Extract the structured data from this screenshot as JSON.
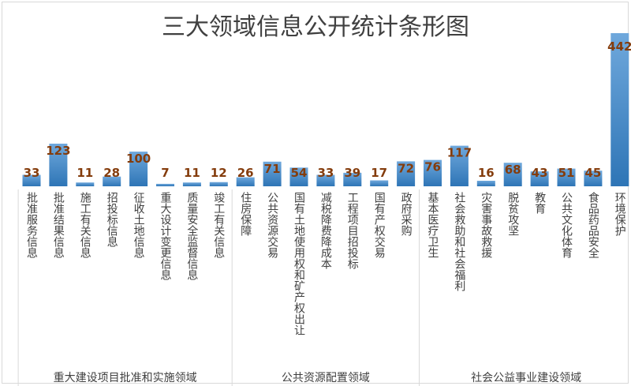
{
  "chart_data": {
    "type": "bar",
    "title": "三大领域信息公开统计条形图",
    "categories": [
      "批准服务信息",
      "批准结果信息",
      "施工有关信息",
      "招投标信息",
      "征收土地信息",
      "重大设计变更信息",
      "质量安全监督信息",
      "竣工有关信息",
      "住房保障",
      "公共资源交易",
      "国有土地使用权和矿产权出让",
      "减税降费降成本",
      "工程项目招投标",
      "国有产权交易",
      "政府采购",
      "基本医疗卫生",
      "社会救助和社会福利",
      "灾害事故救援",
      "脱贫攻坚",
      "教育",
      "公共文化体育",
      "食品药品安全",
      "环境保护"
    ],
    "values": [
      33,
      123,
      11,
      28,
      100,
      7,
      11,
      12,
      26,
      71,
      54,
      33,
      39,
      17,
      72,
      76,
      117,
      16,
      68,
      43,
      51,
      45,
      442
    ],
    "groups": [
      {
        "label": "重大建设项目批准和实施领域",
        "start": 0,
        "end": 7
      },
      {
        "label": "公共资源配置领域",
        "start": 8,
        "end": 14
      },
      {
        "label": "社会公益事业建设领域",
        "start": 15,
        "end": 22
      }
    ],
    "ylim": [
      0,
      442
    ],
    "grid": false,
    "legend": "none",
    "colors": {
      "bar_top": "#6fa8dc",
      "bar_bottom": "#2e75b6",
      "label": "#843c0c",
      "text": "#404040"
    }
  }
}
